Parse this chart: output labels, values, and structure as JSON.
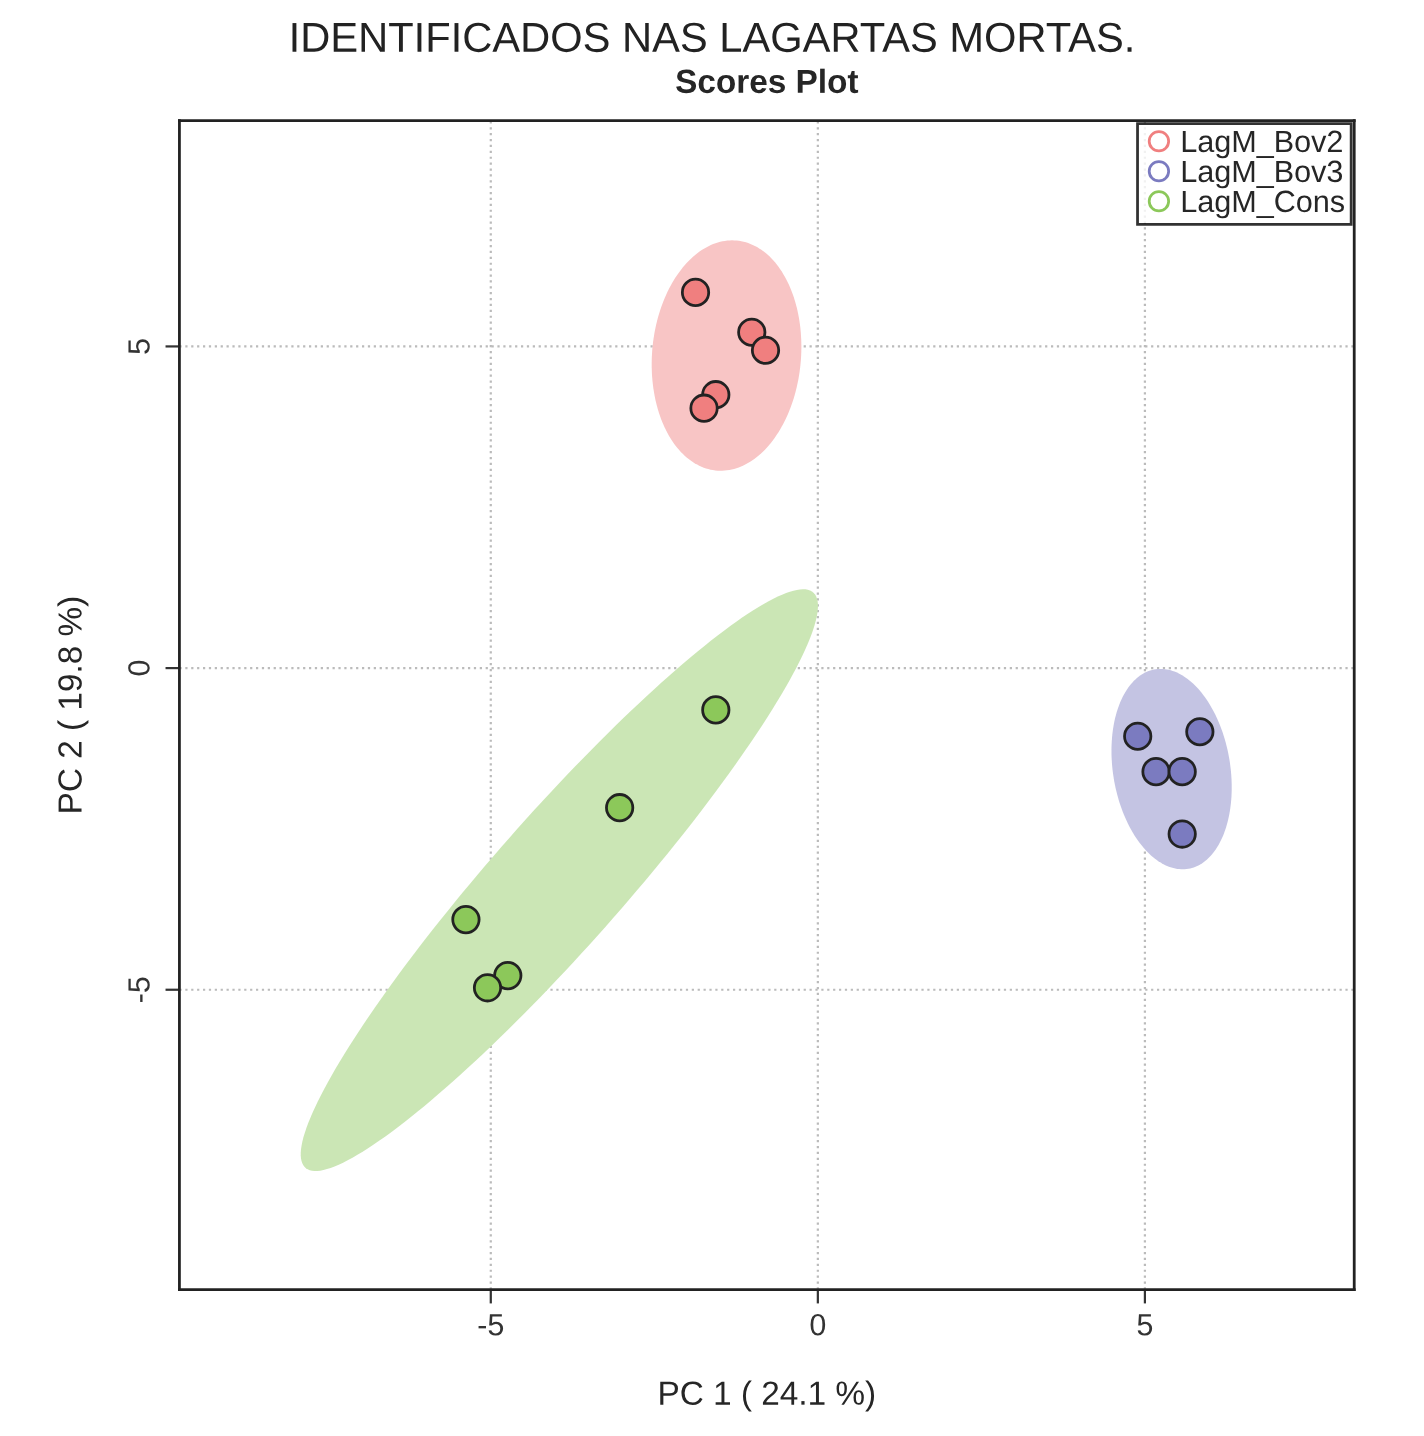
{
  "chart_data": {
    "type": "scatter",
    "title": "Scores Plot",
    "xlabel": "PC 1 ( 24.1 %)",
    "ylabel": "PC 2 ( 19.8 %)",
    "annotations": [
      "IDENTIFICADOS NAS LAGARTAS MORTAS."
    ],
    "series": [
      {
        "name": "LagM_Bov2",
        "color": "#f07f7f",
        "x": [
          -1.87,
          -1.01,
          -0.8,
          -1.56,
          -1.74
        ],
        "values": [
          5.84,
          5.22,
          4.94,
          4.25,
          4.04
        ]
      },
      {
        "name": "LagM_Bov3",
        "color": "#7b7bc0",
        "x": [
          4.89,
          5.84,
          5.17,
          5.57,
          5.57
        ],
        "values": [
          -1.06,
          -0.99,
          -1.61,
          -1.61,
          -2.58
        ]
      },
      {
        "name": "LagM_Cons",
        "color": "#8cc85a",
        "x": [
          -1.56,
          -3.03,
          -5.38,
          -4.74,
          -5.05
        ],
        "values": [
          -0.65,
          -2.17,
          -3.91,
          -4.78,
          -4.97
        ]
      }
    ],
    "xlim": [
      -9.76,
      8.2
    ],
    "ylim": [
      -9.66,
      8.51
    ],
    "xticks": [
      -5,
      0,
      5
    ],
    "yticks": [
      -5,
      0,
      5
    ],
    "grid": true,
    "legend": "top right",
    "marker": "circle"
  }
}
